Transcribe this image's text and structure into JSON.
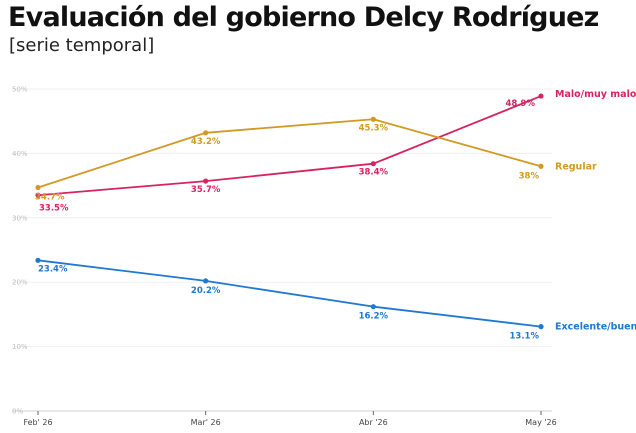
{
  "chart_data": {
    "type": "line",
    "title": "Evaluación del gobierno Delcy Rodríguez",
    "subtitle": "[serie temporal]",
    "x": [
      "Feb' 26",
      "Mar' 26",
      "Abr '26",
      "May '26"
    ],
    "ylim": [
      0,
      50
    ],
    "yticks": [
      "0%",
      "10%",
      "20%",
      "30%",
      "40%",
      "50%"
    ],
    "grid": true,
    "series": [
      {
        "name": "Malo/muy malo",
        "color": "#d6245f",
        "values": [
          33.5,
          35.7,
          38.4,
          48.9
        ],
        "labels": [
          "33.5%",
          "35.7%",
          "38.4%",
          "48.9%"
        ]
      },
      {
        "name": "Regular",
        "color": "#d19a24",
        "values": [
          34.7,
          43.2,
          45.3,
          38.0
        ],
        "labels": [
          "34.7%",
          "43.2%",
          "45.3%",
          "38%"
        ]
      },
      {
        "name": "Excelente/bueno",
        "color": "#1f78d1",
        "values": [
          23.4,
          20.2,
          16.2,
          13.1
        ],
        "labels": [
          "23.4%",
          "20.2%",
          "16.2%",
          "13.1%"
        ]
      }
    ]
  }
}
